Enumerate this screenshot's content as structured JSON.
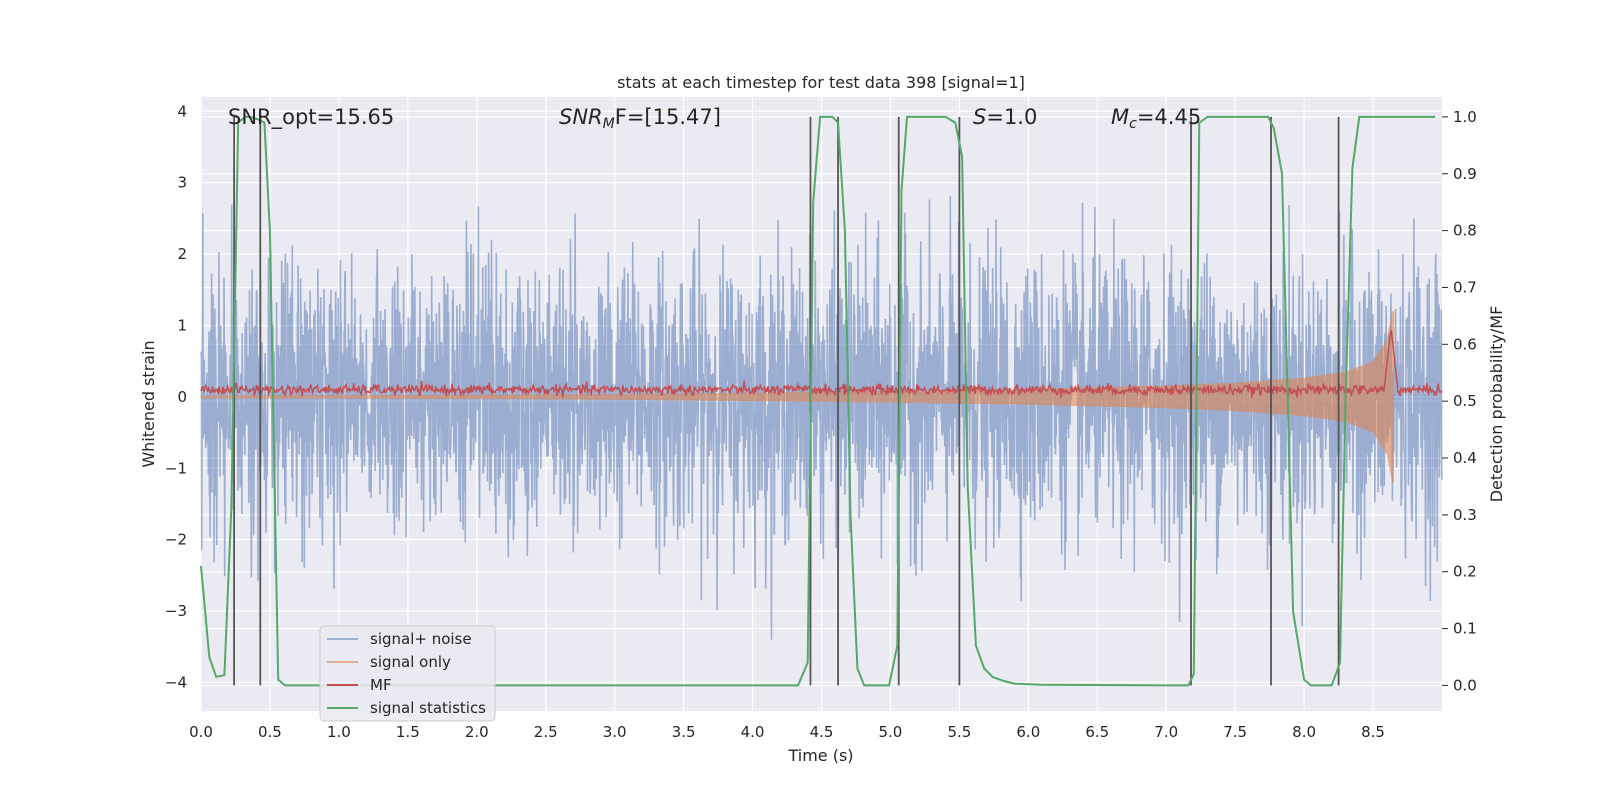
{
  "chart_data": {
    "type": "line",
    "title": "stats at each timestep for test data 398 [signal=1]",
    "xlabel": "Time (s)",
    "ylabel": "Whitened strain",
    "ylabel_right": "Detection probability/MF",
    "xlim": [
      0,
      9.0
    ],
    "ylim": [
      -4.4,
      4.2
    ],
    "ylim_right": [
      -0.045,
      1.035
    ],
    "xticks": [
      0.0,
      0.5,
      1.0,
      1.5,
      2.0,
      2.5,
      3.0,
      3.5,
      4.0,
      4.5,
      5.0,
      5.5,
      6.0,
      6.5,
      7.0,
      7.5,
      8.0,
      8.5
    ],
    "xtick_labels": [
      "0.0",
      "0.5",
      "1.0",
      "1.5",
      "2.0",
      "2.5",
      "3.0",
      "3.5",
      "4.0",
      "4.5",
      "5.0",
      "5.5",
      "6.0",
      "6.5",
      "7.0",
      "7.5",
      "8.0",
      "8.5"
    ],
    "yticks": [
      -4,
      -3,
      -2,
      -1,
      0,
      1,
      2,
      3,
      4
    ],
    "ytick_labels": [
      "−4",
      "−3",
      "−2",
      "−1",
      "0",
      "1",
      "2",
      "3",
      "4"
    ],
    "yticks_right": [
      0.0,
      0.1,
      0.2,
      0.3,
      0.4,
      0.5,
      0.6,
      0.7,
      0.8,
      0.9,
      1.0
    ],
    "ytick_labels_right": [
      "0.0",
      "0.1",
      "0.2",
      "0.3",
      "0.4",
      "0.5",
      "0.6",
      "0.7",
      "0.8",
      "0.9",
      "1.0"
    ],
    "grid": true,
    "legend_placement": "lower-left",
    "annotations": {
      "snr_opt": "SNR_opt=15.65",
      "snr_mf_name": "SNR",
      "snr_mf_sub": "M",
      "snr_mf_rest": "F=[15.47]",
      "s_name": "S",
      "s_rest": "=1.0",
      "mc_name": "M",
      "mc_sub": "c",
      "mc_rest": "=4.45"
    },
    "colors": {
      "background": "#eaeaf2",
      "grid": "#ffffff",
      "noise": "#4c72b0",
      "signal": "#dd8452",
      "mf": "#c44e52",
      "stats": "#55a868",
      "vlines": "#555555"
    },
    "series": [
      {
        "name": "signal+ noise",
        "axis": "left",
        "description_values": {
          "noise_std": 0.95,
          "max": 3.4,
          "min": -3.4
        }
      },
      {
        "name": "signal only",
        "axis": "left",
        "envelope": {
          "x": [
            0,
            2,
            3,
            4,
            5,
            6,
            7,
            7.5,
            8.0,
            8.3,
            8.5,
            8.6,
            8.64
          ],
          "half_amp": [
            0.02,
            0.03,
            0.04,
            0.06,
            0.08,
            0.11,
            0.16,
            0.2,
            0.27,
            0.35,
            0.5,
            0.8,
            1.2
          ]
        },
        "end_x": 8.65
      },
      {
        "name": "MF",
        "axis": "right",
        "base": 0.52,
        "peak": {
          "x": 8.63,
          "y": 0.63
        }
      },
      {
        "name": "signal statistics",
        "axis": "right",
        "x": [
          0.0,
          0.06,
          0.11,
          0.17,
          0.22,
          0.27,
          0.32,
          0.36,
          0.42,
          0.46,
          0.5,
          0.56,
          0.61,
          0.65,
          1.0,
          2.0,
          3.0,
          4.0,
          4.33,
          4.4,
          4.44,
          4.49,
          4.54,
          4.58,
          4.62,
          4.67,
          4.71,
          4.76,
          4.81,
          4.99,
          5.05,
          5.08,
          5.12,
          5.2,
          5.4,
          5.47,
          5.52,
          5.56,
          5.62,
          5.68,
          5.74,
          5.82,
          5.9,
          6.1,
          7.0,
          7.16,
          7.2,
          7.24,
          7.3,
          7.74,
          7.78,
          7.84,
          7.92,
          8.0,
          8.05,
          8.2,
          8.26,
          8.3,
          8.35,
          8.4,
          8.45,
          8.95
        ],
        "values": [
          0.21,
          0.05,
          0.015,
          0.018,
          0.31,
          0.99,
          1.0,
          1.0,
          0.995,
          0.99,
          0.8,
          0.01,
          0.0,
          0.0,
          0.0,
          0.0,
          0.0,
          0.0,
          0.0,
          0.04,
          0.85,
          1.0,
          1.0,
          1.0,
          0.99,
          0.8,
          0.3,
          0.03,
          0.0,
          0.0,
          0.07,
          0.87,
          1.0,
          1.0,
          1.0,
          0.99,
          0.93,
          0.35,
          0.07,
          0.03,
          0.015,
          0.008,
          0.003,
          0.001,
          0.0,
          0.0,
          0.02,
          0.99,
          1.0,
          1.0,
          0.98,
          0.9,
          0.13,
          0.01,
          0.0,
          0.0,
          0.04,
          0.5,
          0.91,
          1.0,
          1.0,
          1.0
        ]
      }
    ],
    "vlines_x": [
      0.24,
      0.43,
      4.42,
      4.62,
      5.06,
      5.5,
      7.18,
      7.76,
      8.25
    ]
  }
}
